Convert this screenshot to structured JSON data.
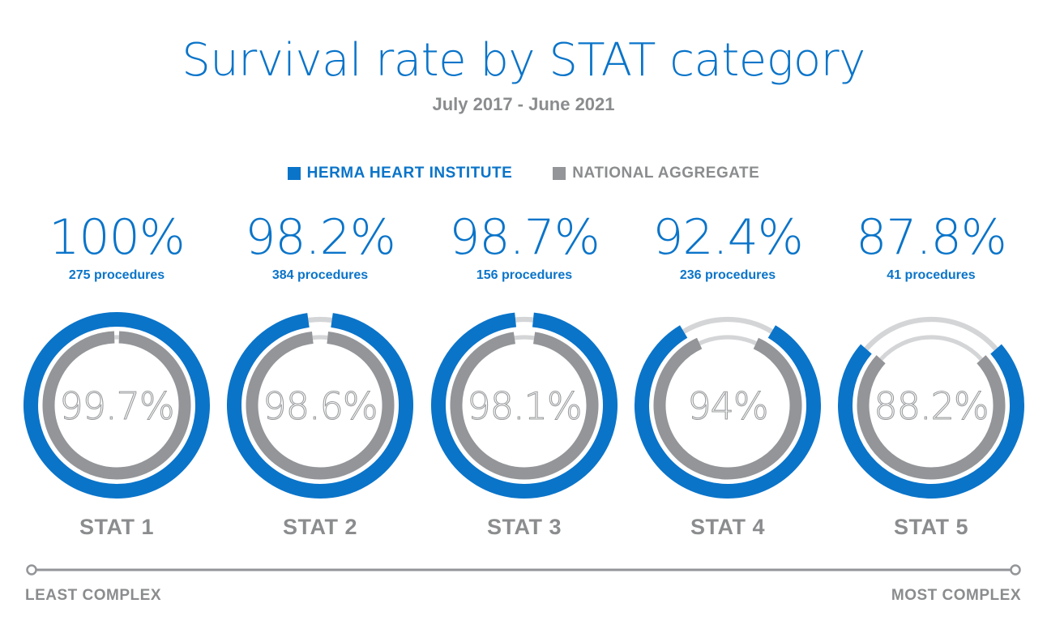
{
  "colors": {
    "hhi": "#0a74c9",
    "national": "#939598",
    "gap_track": "#d4d5d7",
    "text_gray": "#8a8c8e"
  },
  "chart_data": {
    "type": "pie",
    "subtype": "nested-donut",
    "title": "Survival rate by STAT category",
    "subtitle": "July 2017 - June 2021",
    "legend": [
      {
        "name": "HERMA HEART INSTITUTE",
        "color": "#0a74c9"
      },
      {
        "name": "NATIONAL AGGREGATE",
        "color": "#939598"
      }
    ],
    "legend_position": "top-center",
    "categories": [
      "STAT 1",
      "STAT 2",
      "STAT 3",
      "STAT 4",
      "STAT 5"
    ],
    "series": [
      {
        "name": "HERMA HEART INSTITUTE",
        "values": [
          100,
          98.2,
          98.7,
          92.4,
          87.8
        ],
        "unit": "%"
      },
      {
        "name": "NATIONAL AGGREGATE",
        "values": [
          99.7,
          98.6,
          98.1,
          94,
          88.2
        ],
        "unit": "%"
      }
    ],
    "hhi_labels": [
      "100%",
      "98.2%",
      "98.7%",
      "92.4%",
      "87.8%"
    ],
    "national_labels": [
      "99.7%",
      "98.6%",
      "98.1%",
      "94%",
      "88.2%"
    ],
    "procedures": [
      "275 procedures",
      "384 procedures",
      "156 procedures",
      "236 procedures",
      "41 procedures"
    ],
    "complexity_axis": {
      "start_label": "LEAST COMPLEX",
      "end_label": "MOST COMPLEX"
    }
  }
}
